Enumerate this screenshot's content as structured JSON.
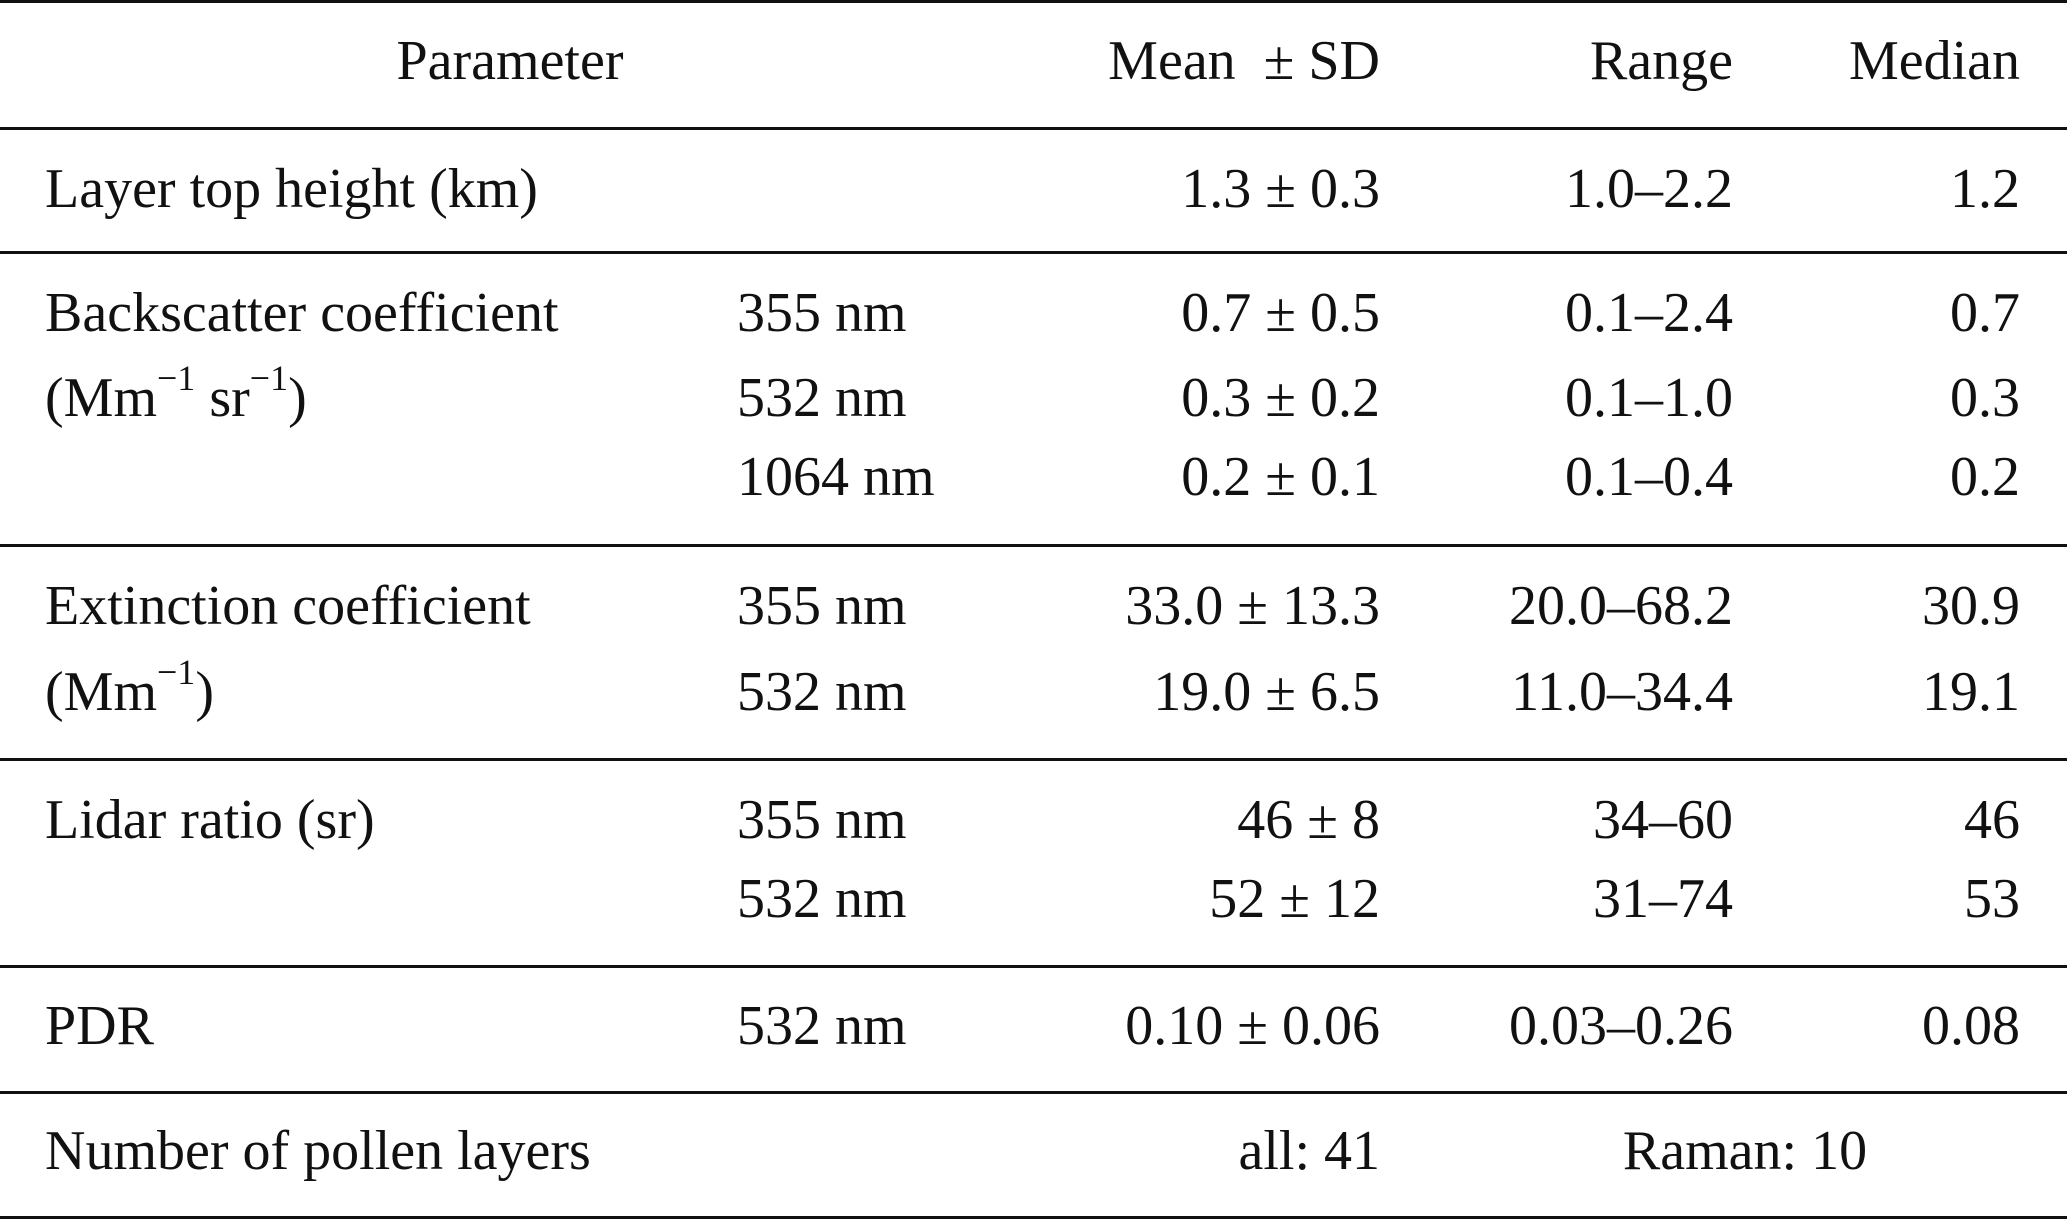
{
  "table": {
    "header": {
      "parameter": "Parameter",
      "mean_sd": "Mean  ± SD",
      "range": "Range",
      "median": "Median"
    },
    "rows": {
      "layer_top": {
        "label": "Layer top height (km)",
        "mean_sd": "1.3 ± 0.3",
        "range": "1.0–2.2",
        "median": "1.2"
      },
      "backscatter": {
        "label_line1": "Backscatter coefficient",
        "label_line2_prefix": "(Mm",
        "label_line2_sup1": "−1",
        "label_line2_mid": " sr",
        "label_line2_sup2": "−1",
        "label_line2_suffix": ")",
        "sub": [
          {
            "wavelength": "355 nm",
            "mean_sd": "0.7 ± 0.5",
            "range": "0.1–2.4",
            "median": "0.7"
          },
          {
            "wavelength": "532 nm",
            "mean_sd": "0.3 ± 0.2",
            "range": "0.1–1.0",
            "median": "0.3"
          },
          {
            "wavelength": "1064 nm",
            "mean_sd": "0.2 ± 0.1",
            "range": "0.1–0.4",
            "median": "0.2"
          }
        ]
      },
      "extinction": {
        "label_line1": "Extinction coefficient",
        "label_line2_prefix": "(Mm",
        "label_line2_sup": "−1",
        "label_line2_suffix": ")",
        "sub": [
          {
            "wavelength": "355 nm",
            "mean_sd": "33.0 ± 13.3",
            "range": "20.0–68.2",
            "median": "30.9"
          },
          {
            "wavelength": "532 nm",
            "mean_sd": "19.0 ± 6.5",
            "range": "11.0–34.4",
            "median": "19.1"
          }
        ]
      },
      "lidar_ratio": {
        "label": "Lidar ratio (sr)",
        "sub": [
          {
            "wavelength": "355 nm",
            "mean_sd": "46 ± 8",
            "range": "34–60",
            "median": "46"
          },
          {
            "wavelength": "532 nm",
            "mean_sd": "52 ± 12",
            "range": "31–74",
            "median": "53"
          }
        ]
      },
      "pdr": {
        "label": "PDR",
        "wavelength": "532 nm",
        "mean_sd": "0.10 ± 0.06",
        "range": "0.03–0.26",
        "median": "0.08"
      },
      "pollen_layers": {
        "label": "Number of pollen layers",
        "all": "all: 41",
        "raman": "Raman: 10"
      }
    }
  }
}
